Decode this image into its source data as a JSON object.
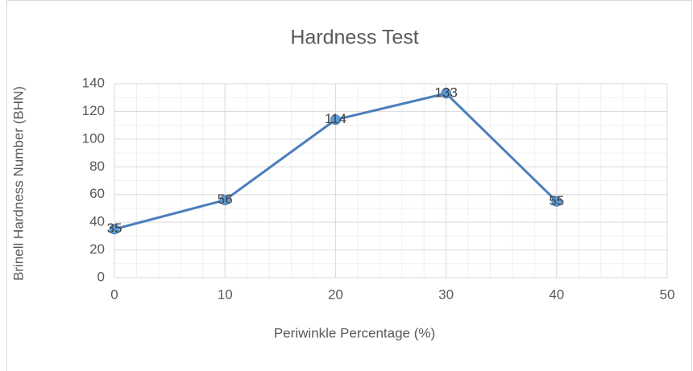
{
  "chart_data": {
    "type": "line",
    "title": "Hardness Test",
    "x_label": "Periwinkle Percentage (%)",
    "y_label": "Brinell Hardness Number (BHN)",
    "x": [
      0,
      10,
      20,
      30,
      40
    ],
    "series": [
      {
        "name": "BHN",
        "color": "#4a7ebb",
        "values": [
          35,
          56,
          114,
          133,
          55
        ]
      }
    ],
    "xlim": [
      0,
      50
    ],
    "xticks": [
      0,
      10,
      20,
      30,
      40,
      50
    ],
    "ylim": [
      0,
      140
    ],
    "yticks": [
      0,
      20,
      40,
      60,
      80,
      100,
      120,
      140
    ],
    "grid": true,
    "minor_grid": true
  }
}
